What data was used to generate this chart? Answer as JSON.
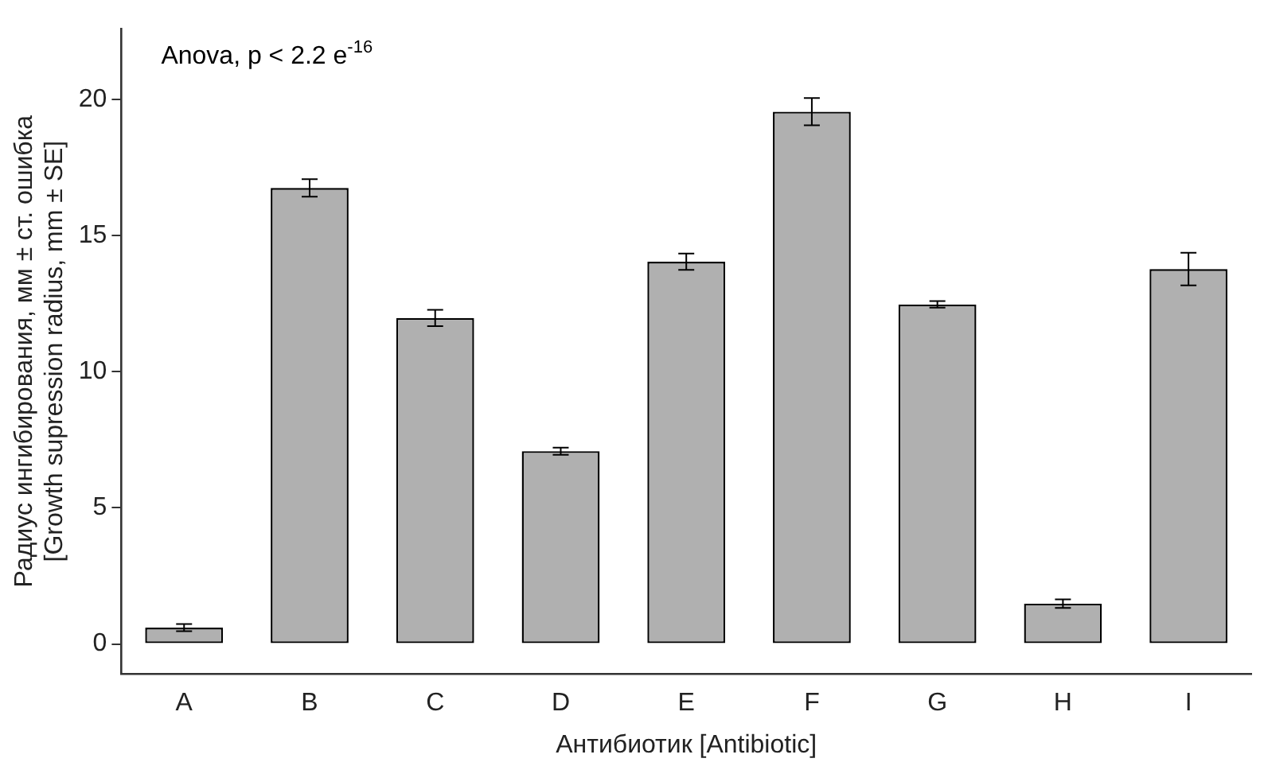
{
  "chart_data": {
    "type": "bar",
    "categories": [
      "A",
      "B",
      "C",
      "D",
      "E",
      "F",
      "G",
      "H",
      "I"
    ],
    "values": [
      0.6,
      16.75,
      11.97,
      7.08,
      14.04,
      19.55,
      12.47,
      1.48,
      13.77
    ],
    "errors": [
      0.13,
      0.32,
      0.3,
      0.13,
      0.3,
      0.5,
      0.12,
      0.16,
      0.6
    ],
    "color": "#b0b0b0",
    "xlabel": "Антибиотик [Antibiotic]",
    "ylabel": "Радиус ингибирования, мм ± ст. ошибка\n[Growth supression radius, mm ± SE]",
    "annotations": [
      "Anova, p < 2.2 e$^{-16}$"
    ],
    "ylim": [
      -1.1,
      22.6
    ],
    "yticks": [
      0,
      5,
      10,
      15,
      20
    ],
    "grid": false,
    "legend": false
  }
}
